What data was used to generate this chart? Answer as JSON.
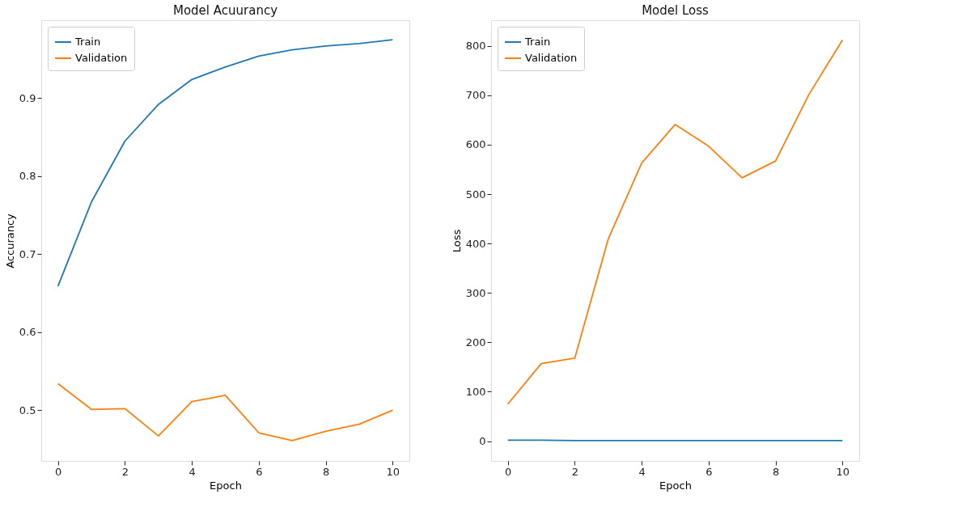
{
  "chart_data": [
    {
      "type": "line",
      "title": "Model Acuurancy",
      "xlabel": "Epoch",
      "ylabel": "Accurancy",
      "x": [
        0,
        1,
        2,
        3,
        4,
        5,
        6,
        7,
        8,
        9,
        10
      ],
      "xlim": [
        -0.5,
        10.5
      ],
      "xticks": [
        0,
        2,
        4,
        6,
        8,
        10
      ],
      "ylim": [
        0.435,
        1.0
      ],
      "yticks": [
        0.5,
        0.6,
        0.7,
        0.8,
        0.9
      ],
      "grid": false,
      "legend": "top left",
      "marker": "none",
      "line_style": "solid",
      "series": [
        {
          "name": "Train",
          "color": "#1f77b4",
          "values": [
            0.659,
            0.767,
            0.845,
            0.892,
            0.924,
            0.94,
            0.954,
            0.962,
            0.967,
            0.97,
            0.975
          ]
        },
        {
          "name": "Validation",
          "color": "#ff7f0e",
          "values": [
            0.534,
            0.501,
            0.502,
            0.467,
            0.511,
            0.519,
            0.471,
            0.461,
            0.473,
            0.482,
            0.5
          ]
        }
      ]
    },
    {
      "type": "line",
      "title": "Model Loss",
      "xlabel": "Epoch",
      "ylabel": "Loss",
      "x": [
        0,
        1,
        2,
        3,
        4,
        5,
        6,
        7,
        8,
        9,
        10
      ],
      "xlim": [
        -0.5,
        10.5
      ],
      "xticks": [
        0,
        2,
        4,
        6,
        8,
        10
      ],
      "ylim": [
        -40,
        852
      ],
      "yticks": [
        0,
        100,
        200,
        300,
        400,
        500,
        600,
        700,
        800
      ],
      "grid": false,
      "legend": "top left",
      "marker": "none",
      "line_style": "solid",
      "series": [
        {
          "name": "Train",
          "color": "#1f77b4",
          "values": [
            2,
            2,
            1,
            1,
            1,
            1,
            1,
            1,
            1,
            1,
            1
          ]
        },
        {
          "name": "Validation",
          "color": "#ff7f0e",
          "values": [
            75,
            157,
            168,
            409,
            563,
            641,
            597,
            533,
            567,
            702,
            812
          ]
        }
      ]
    }
  ]
}
